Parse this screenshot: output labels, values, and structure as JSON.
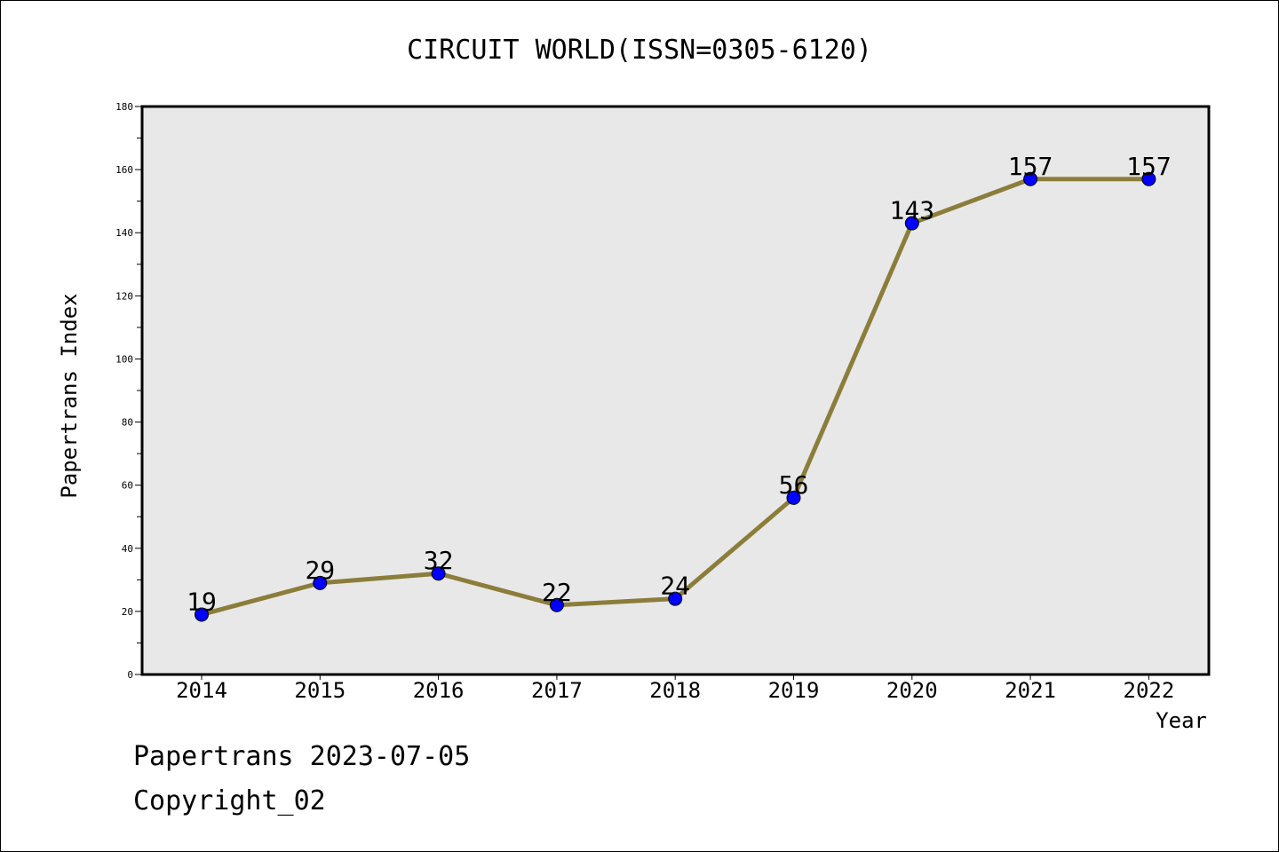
{
  "chart_data": {
    "type": "line",
    "title": "CIRCUIT WORLD(ISSN=0305-6120)",
    "xlabel": "Year",
    "ylabel": "Papertrans Index",
    "categories": [
      "2014",
      "2015",
      "2016",
      "2017",
      "2018",
      "2019",
      "2020",
      "2021",
      "2022"
    ],
    "series": [
      {
        "values": [
          19,
          29,
          32,
          22,
          24,
          56,
          143,
          157,
          157
        ]
      }
    ],
    "ylim": [
      0,
      180
    ],
    "yticks": [
      0,
      20,
      40,
      60,
      80,
      100,
      120,
      140,
      160,
      180
    ],
    "yticks_minor": [
      10,
      30,
      50,
      70,
      90,
      110,
      130,
      150,
      170
    ],
    "grid": false,
    "data_labels": true,
    "colors": {
      "line": "#8b7d3a",
      "marker": "#0000ff",
      "plot_background": "#e8e8e8"
    }
  },
  "footer": {
    "date_line": "Papertrans 2023-07-05",
    "copyright_line": "Copyright_02"
  }
}
